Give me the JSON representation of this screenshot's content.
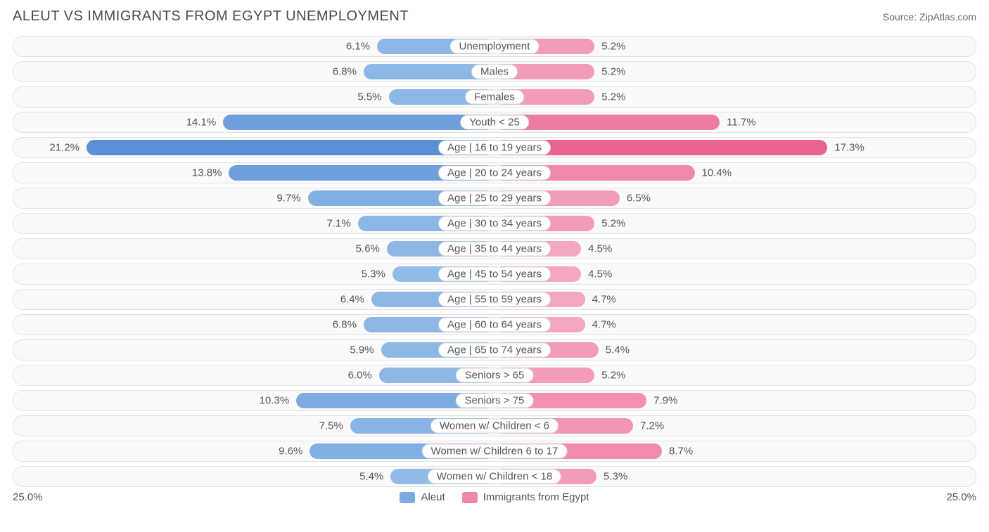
{
  "title": "ALEUT VS IMMIGRANTS FROM EGYPT UNEMPLOYMENT",
  "source_label": "Source: ",
  "source_name": "ZipAtlas.com",
  "left_max_label": "25.0%",
  "right_max_label": "25.0%",
  "max_value": 25.0,
  "legend": {
    "left": {
      "label": "Aleut",
      "color": "#7ba9e0"
    },
    "right": {
      "label": "Immigrants from Egypt",
      "color": "#ef87aa"
    }
  },
  "colors": {
    "row_bg": "#fafafa",
    "row_border": "#e2e2e2",
    "label_border": "#d8d8d8",
    "text": "#555555"
  },
  "rows": [
    {
      "category": "Unemployment",
      "left_val": 6.1,
      "left_label": "6.1%",
      "right_val": 5.2,
      "right_label": "5.2%",
      "left_color": "#8db7e5",
      "right_color": "#f39cb9"
    },
    {
      "category": "Males",
      "left_val": 6.8,
      "left_label": "6.8%",
      "right_val": 5.2,
      "right_label": "5.2%",
      "left_color": "#8db7e5",
      "right_color": "#f39cb9"
    },
    {
      "category": "Females",
      "left_val": 5.5,
      "left_label": "5.5%",
      "right_val": 5.2,
      "right_label": "5.2%",
      "left_color": "#8db7e5",
      "right_color": "#f39cb9"
    },
    {
      "category": "Youth < 25",
      "left_val": 14.1,
      "left_label": "14.1%",
      "right_val": 11.7,
      "right_label": "11.7%",
      "left_color": "#6f9fdd",
      "right_color": "#ee7ba3"
    },
    {
      "category": "Age | 16 to 19 years",
      "left_val": 21.2,
      "left_label": "21.2%",
      "right_val": 17.3,
      "right_label": "17.3%",
      "left_color": "#5a8fd6",
      "right_color": "#e9638f"
    },
    {
      "category": "Age | 20 to 24 years",
      "left_val": 13.8,
      "left_label": "13.8%",
      "right_val": 10.4,
      "right_label": "10.4%",
      "left_color": "#6f9fdd",
      "right_color": "#f088ad"
    },
    {
      "category": "Age | 25 to 29 years",
      "left_val": 9.7,
      "left_label": "9.7%",
      "right_val": 6.5,
      "right_label": "6.5%",
      "left_color": "#81afe2",
      "right_color": "#f39cb9"
    },
    {
      "category": "Age | 30 to 34 years",
      "left_val": 7.1,
      "left_label": "7.1%",
      "right_val": 5.2,
      "right_label": "5.2%",
      "left_color": "#8db7e5",
      "right_color": "#f39cb9"
    },
    {
      "category": "Age | 35 to 44 years",
      "left_val": 5.6,
      "left_label": "5.6%",
      "right_val": 4.5,
      "right_label": "4.5%",
      "left_color": "#8db7e5",
      "right_color": "#f5a6c0"
    },
    {
      "category": "Age | 45 to 54 years",
      "left_val": 5.3,
      "left_label": "5.3%",
      "right_val": 4.5,
      "right_label": "4.5%",
      "left_color": "#92bbe7",
      "right_color": "#f5a6c0"
    },
    {
      "category": "Age | 55 to 59 years",
      "left_val": 6.4,
      "left_label": "6.4%",
      "right_val": 4.7,
      "right_label": "4.7%",
      "left_color": "#8db7e5",
      "right_color": "#f5a6c0"
    },
    {
      "category": "Age | 60 to 64 years",
      "left_val": 6.8,
      "left_label": "6.8%",
      "right_val": 4.7,
      "right_label": "4.7%",
      "left_color": "#8db7e5",
      "right_color": "#f5a6c0"
    },
    {
      "category": "Age | 65 to 74 years",
      "left_val": 5.9,
      "left_label": "5.9%",
      "right_val": 5.4,
      "right_label": "5.4%",
      "left_color": "#8db7e5",
      "right_color": "#f39cb9"
    },
    {
      "category": "Seniors > 65",
      "left_val": 6.0,
      "left_label": "6.0%",
      "right_val": 5.2,
      "right_label": "5.2%",
      "left_color": "#8db7e5",
      "right_color": "#f39cb9"
    },
    {
      "category": "Seniors > 75",
      "left_val": 10.3,
      "left_label": "10.3%",
      "right_val": 7.9,
      "right_label": "7.9%",
      "left_color": "#7dabe1",
      "right_color": "#f190b1"
    },
    {
      "category": "Women w/ Children < 6",
      "left_val": 7.5,
      "left_label": "7.5%",
      "right_val": 7.2,
      "right_label": "7.2%",
      "left_color": "#88b3e4",
      "right_color": "#f296b5"
    },
    {
      "category": "Women w/ Children 6 to 17",
      "left_val": 9.6,
      "left_label": "9.6%",
      "right_val": 8.7,
      "right_label": "8.7%",
      "left_color": "#81afe2",
      "right_color": "#f08bae"
    },
    {
      "category": "Women w/ Children < 18",
      "left_val": 5.4,
      "left_label": "5.4%",
      "right_val": 5.3,
      "right_label": "5.3%",
      "left_color": "#92bbe7",
      "right_color": "#f39cb9"
    }
  ]
}
